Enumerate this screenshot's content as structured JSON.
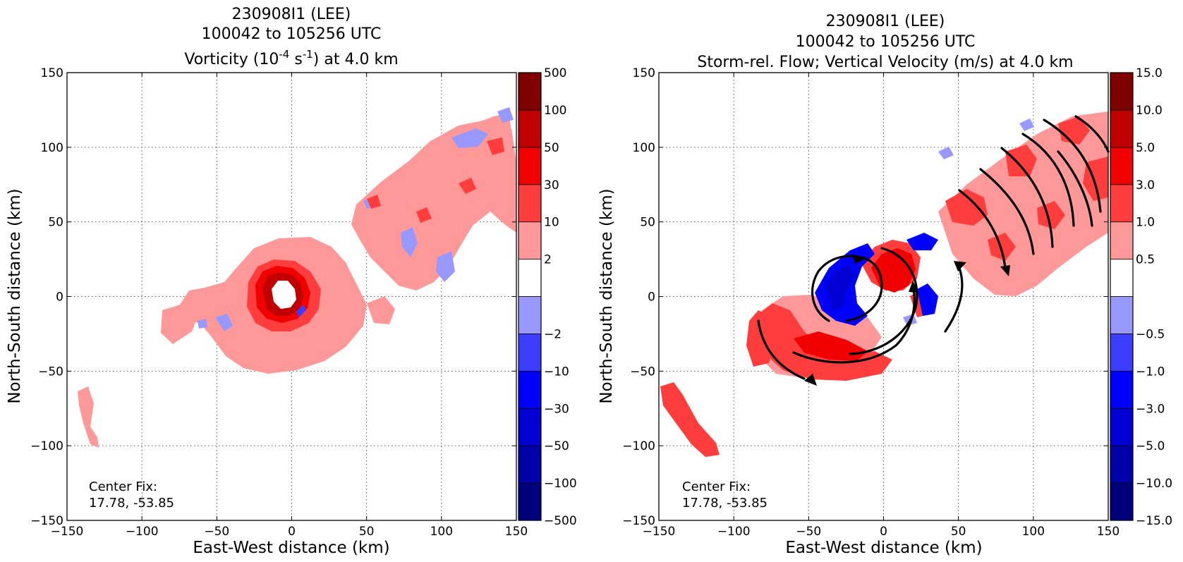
{
  "chart_data": [
    {
      "type": "heatmap",
      "title_lines": [
        "230908I1 (LEE)",
        "100042 to 105256 UTC"
      ],
      "title_var_pre": "Vorticity (10",
      "title_var_exp1": "-4",
      "title_var_mid": " s",
      "title_var_exp2": "-1",
      "title_var_post": ") at 4.0 km",
      "xlabel": "East-West distance (km)",
      "ylabel": "North-South distance (km)",
      "xlim": [
        -150,
        150
      ],
      "ylim": [
        -150,
        150
      ],
      "xticks": [
        "−150",
        "−100",
        "−50",
        "0",
        "50",
        "100",
        "150"
      ],
      "yticks": [
        "−150",
        "−100",
        "−50",
        "0",
        "50",
        "100",
        "150"
      ],
      "grid": true,
      "colorbar_ticks": [
        "−500",
        "−100",
        "−50",
        "−30",
        "−10",
        "−2",
        "2",
        "10",
        "30",
        "50",
        "100",
        "500"
      ],
      "center_fix_label": "Center Fix:",
      "center_fix_value": "17.78, -53.85"
    },
    {
      "type": "heatmap",
      "title_lines": [
        "230908I1 (LEE)",
        "100042 to 105256 UTC",
        "Storm-rel. Flow; Vertical Velocity (m/s) at 4.0 km"
      ],
      "xlabel": "East-West distance (km)",
      "ylabel": "North-South distance (km)",
      "xlim": [
        -150,
        150
      ],
      "ylim": [
        -150,
        150
      ],
      "xticks": [
        "−150",
        "−100",
        "−50",
        "0",
        "50",
        "100",
        "150"
      ],
      "yticks": [
        "−150",
        "−100",
        "−50",
        "0",
        "50",
        "100",
        "150"
      ],
      "grid": true,
      "colorbar_ticks": [
        "−15.0",
        "−10.0",
        "−5.0",
        "−3.0",
        "−1.0",
        "−0.5",
        "0.5",
        "1.0",
        "3.0",
        "5.0",
        "10.0",
        "15.0"
      ],
      "center_fix_label": "Center Fix:",
      "center_fix_value": "17.78, -53.85"
    }
  ],
  "colors": {
    "levels": [
      "#00007d",
      "#0000a8",
      "#0000d2",
      "#0000fd",
      "#3d3dff",
      "#9898ff",
      "#ffffff",
      "#ff9898",
      "#ff3d3d",
      "#f00000",
      "#c00000",
      "#7f0000"
    ]
  }
}
